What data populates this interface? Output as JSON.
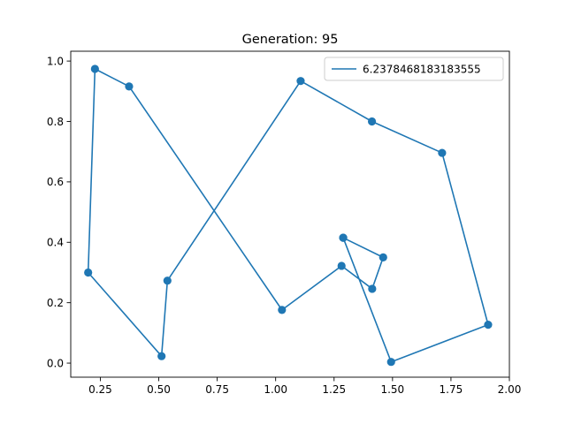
{
  "chart_data": {
    "type": "line",
    "title": "Generation: 95",
    "xlabel": "",
    "ylabel": "",
    "xlim": [
      0.1235,
      2.0
    ],
    "ylim": [
      -0.0466,
      1.0325
    ],
    "xticks": [
      0.25,
      0.5,
      0.75,
      1.0,
      1.25,
      1.5,
      1.75,
      2.0
    ],
    "xtick_labels": [
      "0.25",
      "0.50",
      "0.75",
      "1.00",
      "1.25",
      "1.50",
      "1.75",
      "2.00"
    ],
    "yticks": [
      0.0,
      0.2,
      0.4,
      0.6,
      0.8,
      1.0
    ],
    "ytick_labels": [
      "0.0",
      "0.2",
      "0.4",
      "0.6",
      "0.8",
      "1.0"
    ],
    "grid": false,
    "legend_position": "upper-right",
    "series": [
      {
        "name": "6.2378468183183555",
        "color": "#1f77b4",
        "marker": "circle",
        "x": [
          1.289,
          1.46,
          1.413,
          1.282,
          1.027,
          0.373,
          0.227,
          0.198,
          0.512,
          0.537,
          1.107,
          1.412,
          1.712,
          1.909,
          1.494,
          1.289
        ],
        "y": [
          0.415,
          0.35,
          0.246,
          0.322,
          0.176,
          0.916,
          0.974,
          0.3,
          0.023,
          0.273,
          0.934,
          0.8,
          0.696,
          0.127,
          0.004,
          0.415
        ]
      }
    ]
  }
}
